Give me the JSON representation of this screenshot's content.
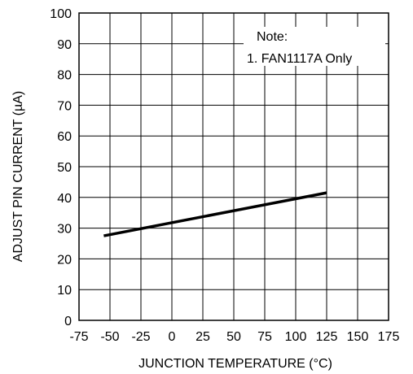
{
  "chart_data": {
    "type": "line",
    "title": "",
    "xlabel": "JUNCTION TEMPERATURE (°C)",
    "ylabel": "ADJUST PIN CURRENT (µA)",
    "xlim": [
      -75,
      175
    ],
    "ylim": [
      0,
      100
    ],
    "xticks": [
      -75,
      -50,
      -25,
      0,
      25,
      50,
      75,
      100,
      125,
      150,
      175
    ],
    "yticks": [
      0,
      10,
      20,
      30,
      40,
      50,
      60,
      70,
      80,
      90,
      100
    ],
    "grid": true,
    "series": [
      {
        "x": [
          -55,
          125
        ],
        "y": [
          27.5,
          41.5
        ],
        "color": "#000000"
      }
    ],
    "annotations": [
      "Note:",
      "1. FAN1117A Only"
    ]
  }
}
